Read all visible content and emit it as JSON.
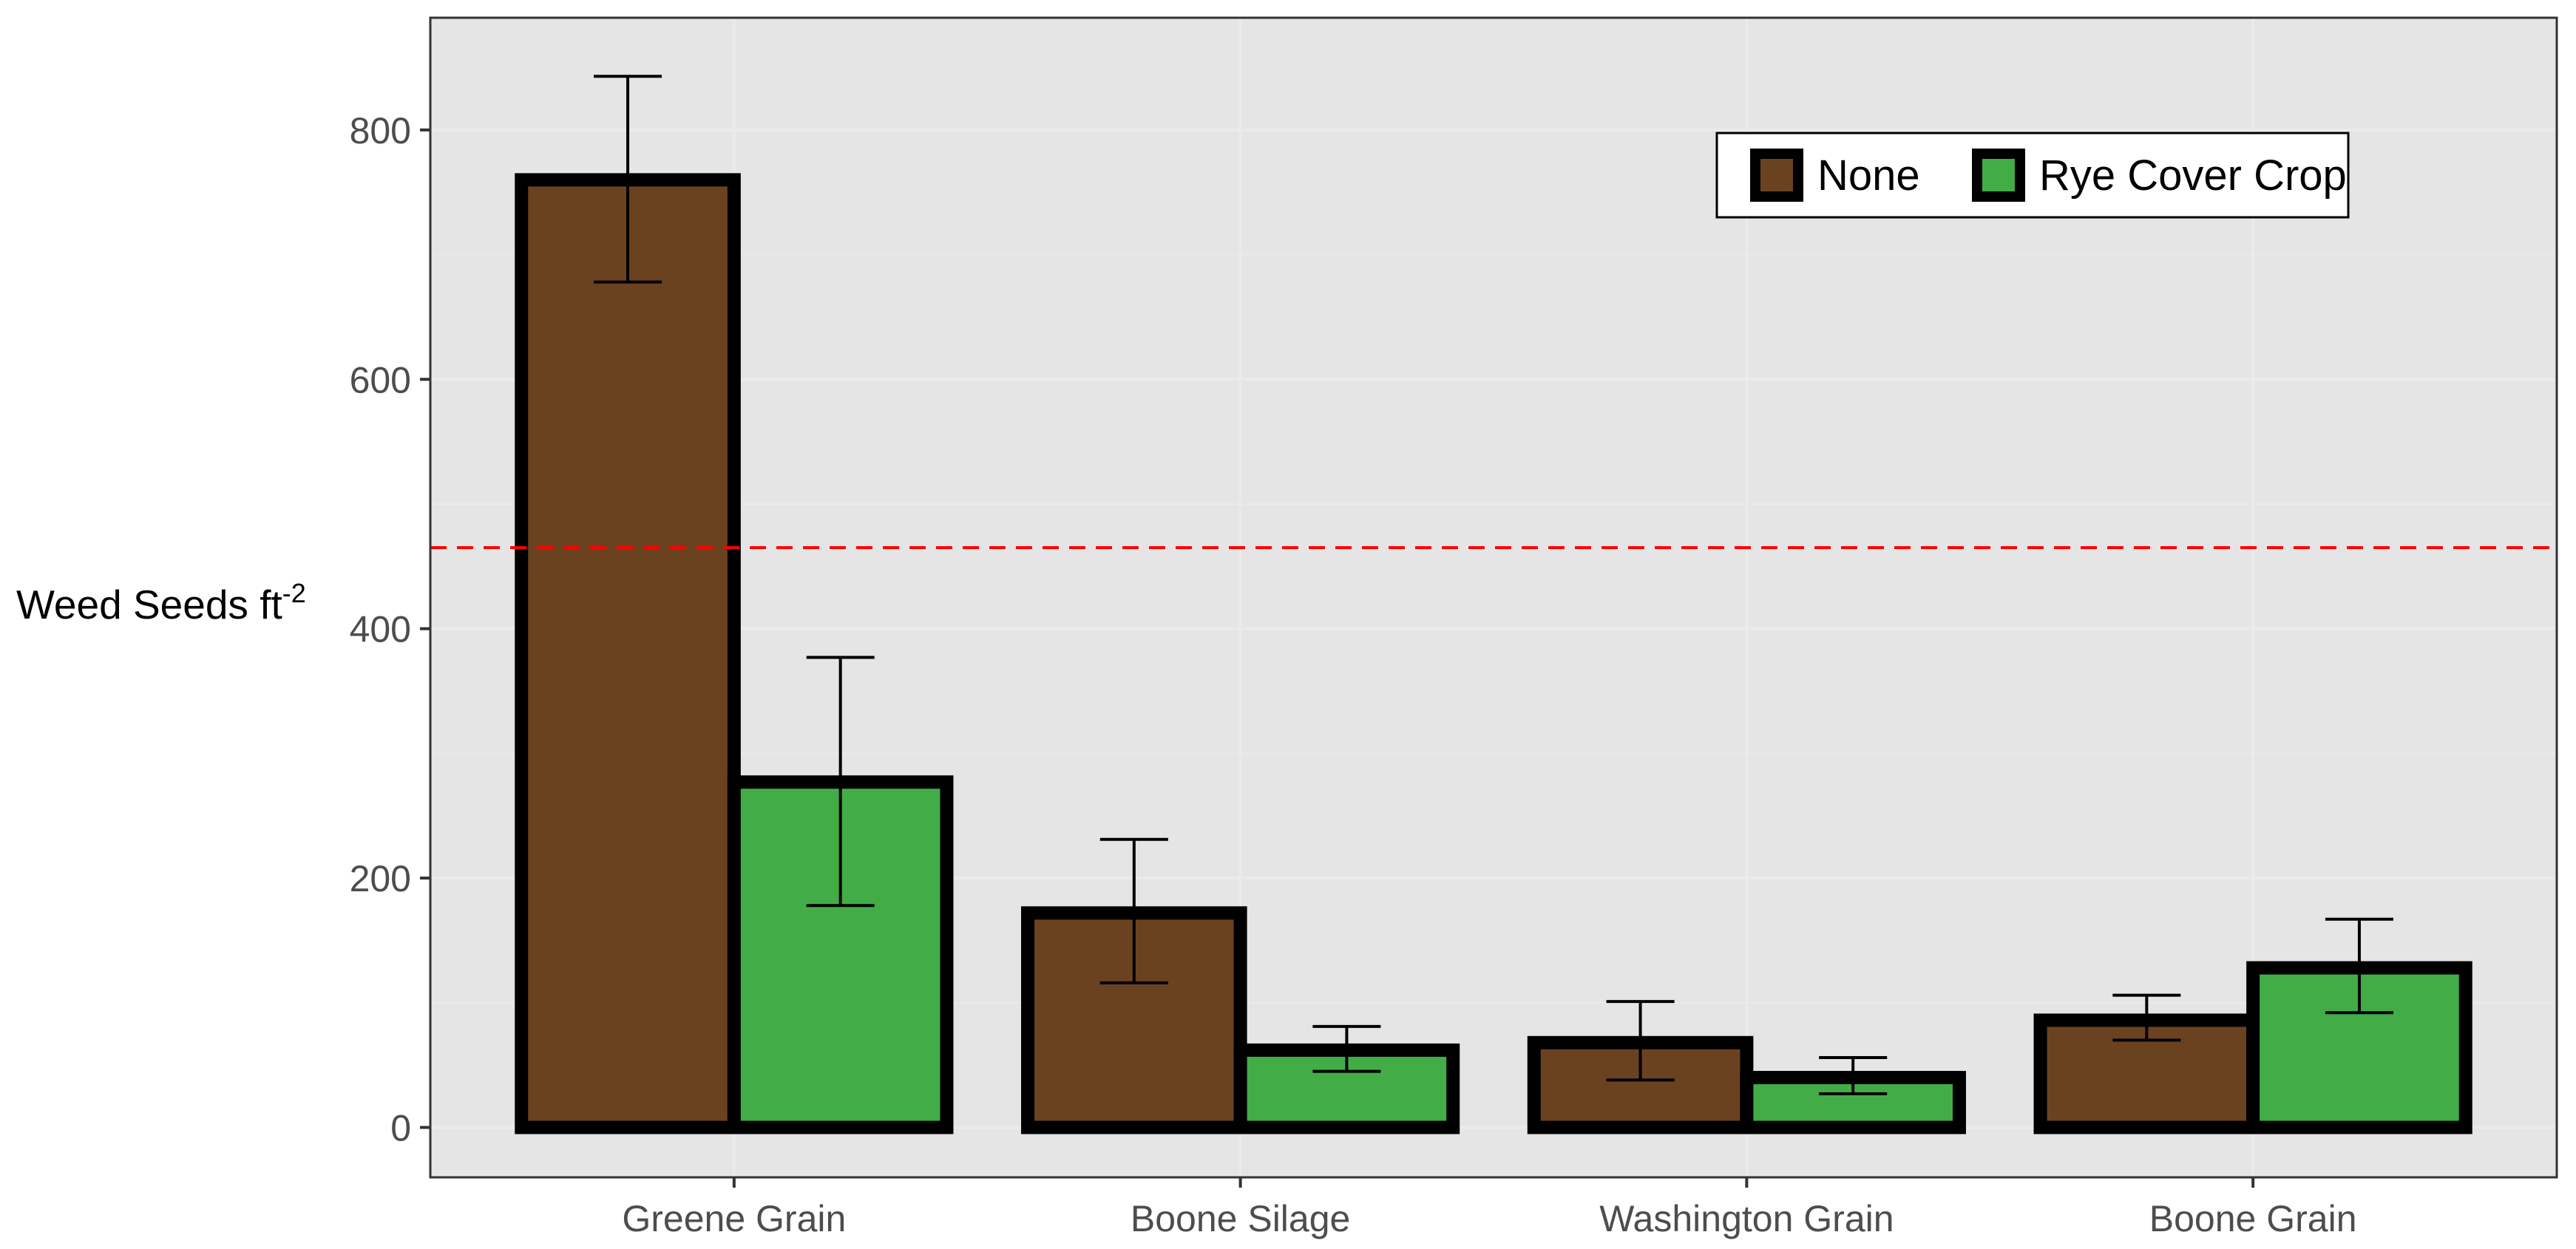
{
  "chart_data": {
    "type": "bar",
    "categories": [
      "Greene Grain",
      "Boone Silage",
      "Washington Grain",
      "Boone Grain"
    ],
    "series": [
      {
        "name": "None",
        "color": "#6b4220",
        "values": [
          760,
          172,
          68,
          86
        ],
        "error_low": [
          678,
          116,
          38,
          70
        ],
        "error_high": [
          843,
          231,
          101,
          106
        ]
      },
      {
        "name": "Rye Cover Crop",
        "color": "#42ad46",
        "values": [
          277,
          62,
          40,
          128
        ],
        "error_low": [
          178,
          45,
          27,
          92
        ],
        "error_high": [
          377,
          81,
          56,
          167
        ]
      }
    ],
    "ylabel": {
      "text": "Weed Seeds ft",
      "superscript": "-2"
    },
    "xlabel": "",
    "ylim": [
      -40,
      890
    ],
    "yticks": [
      0,
      200,
      400,
      600,
      800
    ],
    "reference_line": {
      "value": 465,
      "color": "#ff0000",
      "style": "dashed"
    },
    "legend": {
      "position": "top-right",
      "entries": [
        "None",
        "Rye Cover Crop"
      ]
    },
    "grid": true,
    "panel_background": "#e5e5e5",
    "gridline_color": "#ebebeb"
  }
}
